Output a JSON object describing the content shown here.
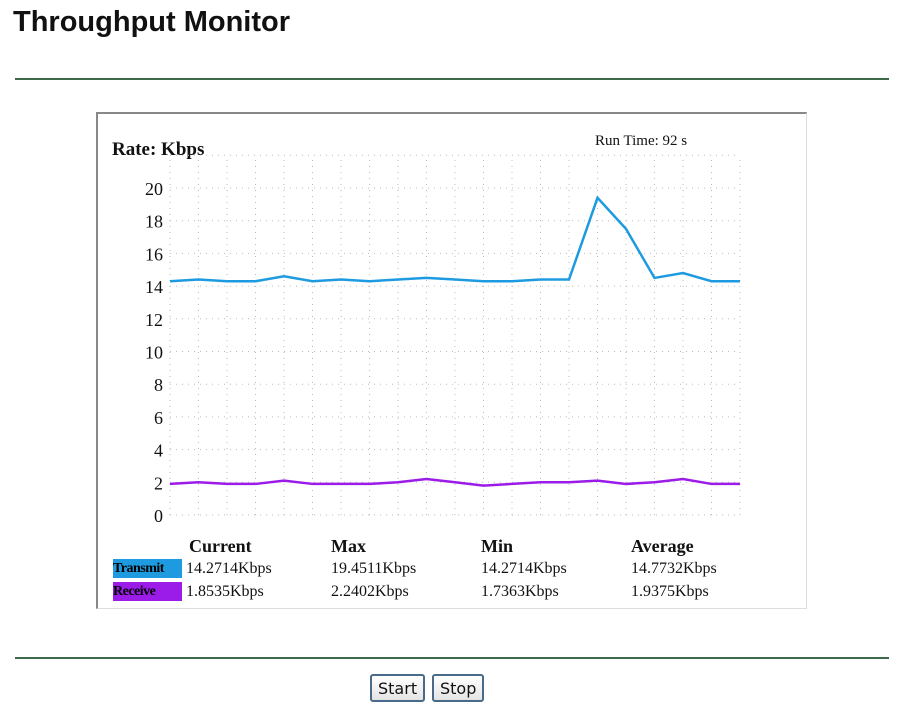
{
  "page_title": "Throughput Monitor",
  "chart_data": {
    "type": "line",
    "ylabel": "Rate: Kbps",
    "run_time": "Run Time: 92 s",
    "ylim": [
      0,
      20
    ],
    "yticks": [
      "0",
      "2",
      "4",
      "6",
      "8",
      "10",
      "12",
      "14",
      "16",
      "18",
      "20"
    ],
    "grid": true,
    "series": [
      {
        "name": "Transmit",
        "color": "#1e9be0",
        "values": [
          14.3,
          14.4,
          14.3,
          14.3,
          14.6,
          14.3,
          14.4,
          14.3,
          14.4,
          14.5,
          14.4,
          14.3,
          14.3,
          14.4,
          14.4,
          19.4,
          17.5,
          14.5,
          14.8,
          14.3,
          14.3
        ]
      },
      {
        "name": "Receive",
        "color": "#9b1be8",
        "values": [
          1.9,
          2.0,
          1.9,
          1.9,
          2.1,
          1.9,
          1.9,
          1.9,
          2.0,
          2.2,
          2.0,
          1.8,
          1.9,
          2.0,
          2.0,
          2.1,
          1.9,
          2.0,
          2.2,
          1.9,
          1.9
        ]
      }
    ]
  },
  "stats": {
    "headers": [
      "Current",
      "Max",
      "Min",
      "Average"
    ],
    "rows": [
      {
        "label": "Transmit",
        "color": "#1e9be0",
        "values": [
          "14.2714Kbps",
          "19.4511Kbps",
          "14.2714Kbps",
          "14.7732Kbps"
        ]
      },
      {
        "label": "Receive",
        "color": "#9b1be8",
        "values": [
          "1.8535Kbps",
          "2.2402Kbps",
          "1.7363Kbps",
          "1.9375Kbps"
        ]
      }
    ]
  },
  "buttons": {
    "start": "Start",
    "stop": "Stop"
  }
}
